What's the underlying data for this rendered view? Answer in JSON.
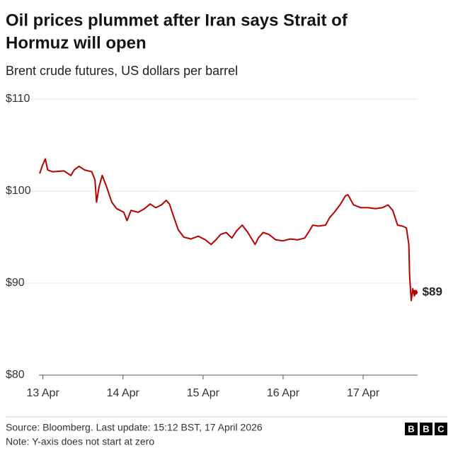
{
  "chart_data": {
    "type": "line",
    "title": [
      "Oil prices plummet after Iran says Strait of",
      "Hormuz will open"
    ],
    "subtitle": "Brent crude futures, US dollars per barrel",
    "x": [
      -0.04,
      -0.01,
      0.03,
      0.06,
      0.12,
      0.26,
      0.35,
      0.39,
      0.45,
      0.52,
      0.61,
      0.65,
      0.67,
      0.7,
      0.74,
      0.79,
      0.86,
      0.92,
      1.01,
      1.05,
      1.1,
      1.19,
      1.27,
      1.34,
      1.41,
      1.48,
      1.54,
      1.58,
      1.63,
      1.69,
      1.76,
      1.85,
      1.94,
      2.03,
      2.1,
      2.16,
      2.22,
      2.29,
      2.36,
      2.42,
      2.49,
      2.56,
      2.65,
      2.69,
      2.75,
      2.82,
      2.91,
      3.0,
      3.09,
      3.18,
      3.27,
      3.33,
      3.37,
      3.44,
      3.53,
      3.58,
      3.64,
      3.71,
      3.78,
      3.81,
      3.88,
      3.97,
      4.06,
      4.15,
      4.24,
      4.31,
      4.37,
      4.43,
      4.49,
      4.54,
      4.57,
      4.58,
      4.6,
      4.62,
      4.64,
      4.65
    ],
    "series": [
      {
        "color": "#b80000",
        "values": [
          101.9,
          102.7,
          103.5,
          102.3,
          102.1,
          102.2,
          101.7,
          102.3,
          102.7,
          102.3,
          102.1,
          101.2,
          98.8,
          100.4,
          101.7,
          100.6,
          98.8,
          98.1,
          97.7,
          96.8,
          97.9,
          97.7,
          98.1,
          98.6,
          98.2,
          98.5,
          99.0,
          98.6,
          97.3,
          95.8,
          95.0,
          94.8,
          95.1,
          94.7,
          94.2,
          94.7,
          95.3,
          95.5,
          94.9,
          95.7,
          96.3,
          95.5,
          94.2,
          94.9,
          95.5,
          95.3,
          94.7,
          94.6,
          94.8,
          94.7,
          94.9,
          95.7,
          96.3,
          96.2,
          96.3,
          97.1,
          97.7,
          98.5,
          99.5,
          99.6,
          98.5,
          98.2,
          98.2,
          98.1,
          98.2,
          98.5,
          97.9,
          96.3,
          96.2,
          96.0,
          94.2,
          90.8,
          88.1,
          89.4,
          88.6,
          89.0
        ]
      }
    ],
    "annotations": [
      {
        "value": 89,
        "label": "$89"
      }
    ],
    "xlim": [
      -0.05,
      4.68
    ],
    "xticks": [
      {
        "value": 0,
        "label": "13 Apr"
      },
      {
        "value": 1,
        "label": "14 Apr"
      },
      {
        "value": 2,
        "label": "15 Apr"
      },
      {
        "value": 3,
        "label": "16 Apr"
      },
      {
        "value": 4,
        "label": "17 Apr"
      }
    ],
    "ylim": [
      80,
      110
    ],
    "yticks": [
      {
        "value": 80,
        "label": "$80"
      },
      {
        "value": 90,
        "label": "$90"
      },
      {
        "value": 100,
        "label": "$100"
      },
      {
        "value": 110,
        "label": "$110"
      }
    ],
    "grid": true,
    "source": "Source: Bloomberg. Last update: 15:12 BST, 17 April 2026",
    "note": "Note: Y-axis does not start at zero",
    "logo": [
      "B",
      "B",
      "C"
    ]
  }
}
